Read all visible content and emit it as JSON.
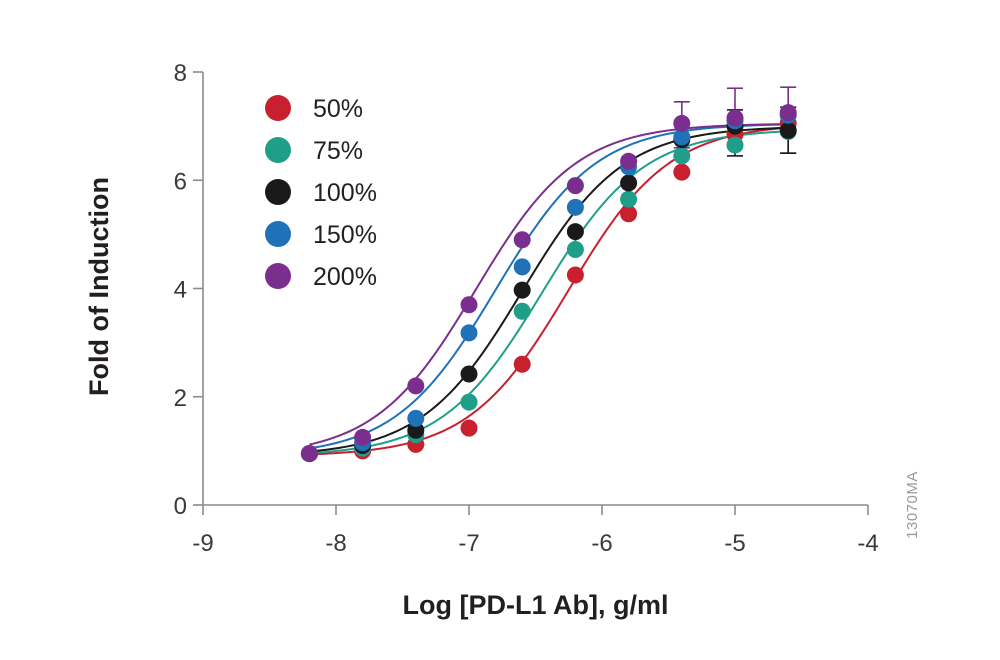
{
  "chart_data": {
    "type": "scatter",
    "title": "",
    "xlabel": "Log [PD-L1 Ab], g/ml",
    "ylabel": "Fold of Induction",
    "xlim": [
      -9,
      -4
    ],
    "ylim": [
      0,
      8
    ],
    "x_ticks": [
      -9,
      -8,
      -7,
      -6,
      -5,
      -4
    ],
    "x_tick_labels": [
      "-9",
      "-8",
      "-7",
      "-6",
      "-5",
      "-4"
    ],
    "y_ticks": [
      0,
      2,
      4,
      6,
      8
    ],
    "y_tick_labels": [
      "0",
      "2",
      "4",
      "6",
      "8"
    ],
    "grid": false,
    "legend_position": "top-left",
    "fit": "four-parameter logistic curve through each series",
    "x": [
      -8.2,
      -7.8,
      -7.4,
      -7.0,
      -6.6,
      -6.2,
      -5.8,
      -5.4,
      -5.0,
      -4.6
    ],
    "series": [
      {
        "name": "50%",
        "color": "#c8202f",
        "values": [
          0.95,
          1.0,
          1.12,
          1.42,
          2.6,
          4.25,
          5.38,
          6.15,
          6.85,
          7.05
        ],
        "fit": {
          "bottom": 0.9,
          "top": 7.05,
          "log_ec50": -6.25,
          "hill": 1.15
        }
      },
      {
        "name": "75%",
        "color": "#1f9e8a",
        "values": [
          0.95,
          1.05,
          1.3,
          1.9,
          3.58,
          4.72,
          5.65,
          6.45,
          6.65,
          6.9
        ],
        "fit": {
          "bottom": 0.9,
          "top": 6.95,
          "log_ec50": -6.45,
          "hill": 1.15
        }
      },
      {
        "name": "100%",
        "color": "#1a1a1a",
        "values": [
          0.95,
          1.1,
          1.38,
          2.42,
          3.97,
          5.05,
          5.95,
          6.75,
          7.0,
          6.92
        ],
        "fit": {
          "bottom": 0.9,
          "top": 7.0,
          "log_ec50": -6.6,
          "hill": 1.15
        }
      },
      {
        "name": "150%",
        "color": "#1f72b8",
        "values": [
          0.95,
          1.15,
          1.6,
          3.18,
          4.4,
          5.5,
          6.25,
          6.8,
          7.1,
          7.2
        ],
        "fit": {
          "bottom": 0.9,
          "top": 7.05,
          "log_ec50": -6.8,
          "hill": 1.15
        }
      },
      {
        "name": "200%",
        "color": "#7a2f8e",
        "values": [
          0.95,
          1.25,
          2.2,
          3.7,
          4.9,
          5.9,
          6.35,
          7.05,
          7.15,
          7.25
        ],
        "fit": {
          "bottom": 0.9,
          "top": 7.05,
          "log_ec50": -6.95,
          "hill": 1.15
        }
      }
    ],
    "error_bars": [
      {
        "series": "200%",
        "x": -5.4,
        "low": 6.6,
        "high": 7.45
      },
      {
        "series": "200%",
        "x": -5.0,
        "low": 6.6,
        "high": 7.7
      },
      {
        "series": "200%",
        "x": -4.6,
        "low": 6.5,
        "high": 7.72
      },
      {
        "series": "100%",
        "x": -5.0,
        "low": 6.45,
        "high": 7.3
      },
      {
        "series": "100%",
        "x": -4.6,
        "low": 6.5,
        "high": 7.35
      }
    ]
  },
  "watermark": "13070MA"
}
